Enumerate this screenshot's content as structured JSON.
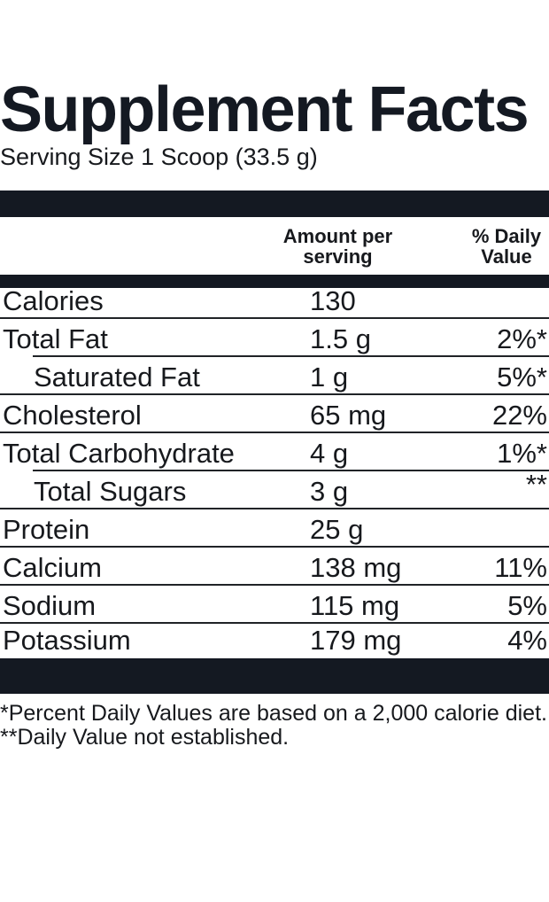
{
  "title": "Supplement Facts",
  "serving_size": "Serving Size 1 Scoop (33.5 g)",
  "colors": {
    "ink": "#141922",
    "rule": "#202327",
    "text": "#17191d",
    "background": "#ffffff"
  },
  "table": {
    "headers": {
      "amount_line1": "Amount per",
      "amount_line2": "serving",
      "dv_line1": "% Daily",
      "dv_line2": "Value"
    },
    "rows": [
      {
        "label": "Calories",
        "amount": "130",
        "dv": "",
        "indent": false
      },
      {
        "label": "Total Fat",
        "amount": "1.5 g",
        "dv": "2%*",
        "indent": false
      },
      {
        "label": "Saturated Fat",
        "amount": "1 g",
        "dv": "5%*",
        "indent": true
      },
      {
        "label": "Cholesterol",
        "amount": "65 mg",
        "dv": "22%",
        "indent": false
      },
      {
        "label": "Total Carbohydrate",
        "amount": "4 g",
        "dv": "1%*",
        "indent": false
      },
      {
        "label": "Total Sugars",
        "amount": "3 g",
        "dv": "**",
        "indent": true
      },
      {
        "label": "Protein",
        "amount": "25 g",
        "dv": "",
        "indent": false
      },
      {
        "label": "Calcium",
        "amount": "138 mg",
        "dv": "11%",
        "indent": false
      },
      {
        "label": "Sodium",
        "amount": "115 mg",
        "dv": "5%",
        "indent": false
      },
      {
        "label": "Potassium",
        "amount": "179 mg",
        "dv": "4%",
        "indent": false
      }
    ]
  },
  "footnotes": [
    "*Percent Daily Values are based on a 2,000 calorie diet.",
    "**Daily Value not established."
  ]
}
